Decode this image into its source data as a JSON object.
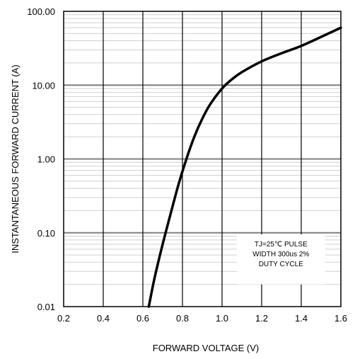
{
  "chart_data": {
    "type": "line",
    "xlabel": "FORWARD VOLTAGE (V)",
    "ylabel": "INSTANTANEOUS FORWARD CURRENT (A)",
    "xlim": [
      0.2,
      1.6
    ],
    "ylim": [
      0.01,
      100
    ],
    "yscale": "log",
    "x_ticks": [
      "0.2",
      "0.4",
      "0.6",
      "0.8",
      "1.0",
      "1.2",
      "1.4",
      "1.6"
    ],
    "y_ticks": [
      "0.01",
      "0.10",
      "1.00",
      "10.00",
      "100.00"
    ],
    "grid": true,
    "annotation": {
      "lines": [
        "TJ=25℃ PULSE",
        "WIDTH 300us 2%",
        "DUTY CYCLE"
      ]
    },
    "series": [
      {
        "x": [
          0.63,
          0.66,
          0.7,
          0.74,
          0.78,
          0.82,
          0.86,
          0.9,
          0.94,
          1.0,
          1.05,
          1.1,
          1.2,
          1.3,
          1.4,
          1.5,
          1.6
        ],
        "y": [
          0.01,
          0.025,
          0.07,
          0.18,
          0.45,
          1.0,
          2.0,
          3.5,
          5.5,
          9.0,
          12.0,
          15.0,
          21.0,
          27.0,
          34.0,
          45.0,
          60.0
        ]
      }
    ],
    "colors": {
      "major_grid": "#7f7f7f",
      "minor_grid": "#cfcfcf",
      "curve": "#000000"
    }
  }
}
